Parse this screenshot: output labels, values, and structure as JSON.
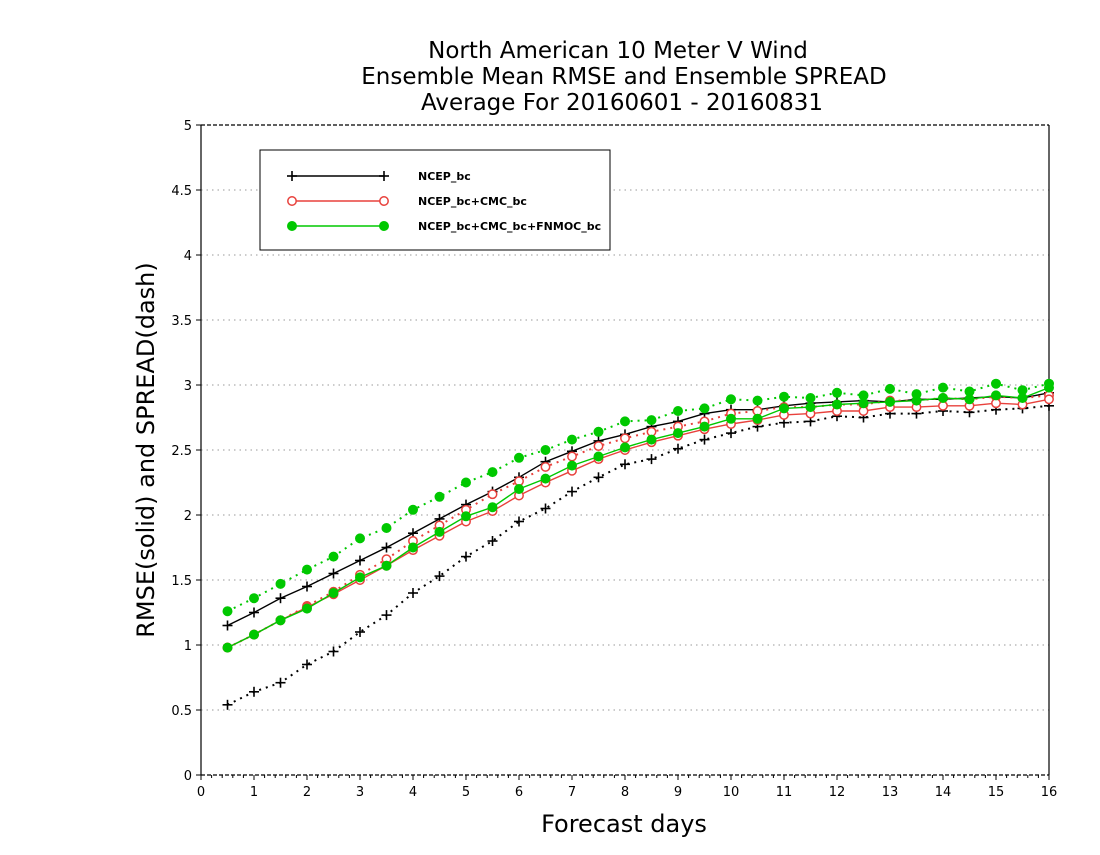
{
  "chart_data": {
    "type": "line",
    "title_lines": [
      "North American 10 Meter V Wind",
      "Ensemble Mean RMSE and Ensemble SPREAD",
      "Average For 20160601 - 20160831"
    ],
    "xlabel": "Forecast days",
    "ylabel": "RMSE(solid) and SPREAD(dash)",
    "xlim": [
      0,
      16
    ],
    "ylim": [
      0,
      5
    ],
    "x_ticks": [
      "0",
      "1",
      "2",
      "3",
      "4",
      "5",
      "6",
      "7",
      "8",
      "9",
      "10",
      "11",
      "12",
      "13",
      "14",
      "15",
      "16"
    ],
    "y_ticks": [
      "0",
      "0.5",
      "1",
      "1.5",
      "2",
      "2.5",
      "3",
      "3.5",
      "4",
      "4.5",
      "5"
    ],
    "grid": "horizontal dotted",
    "legend_position": "top-left",
    "x": [
      0.5,
      1,
      1.5,
      2,
      2.5,
      3,
      3.5,
      4,
      4.5,
      5,
      5.5,
      6,
      6.5,
      7,
      7.5,
      8,
      8.5,
      9,
      9.5,
      10,
      10.5,
      11,
      11.5,
      12,
      12.5,
      13,
      13.5,
      14,
      14.5,
      15,
      15.5,
      16
    ],
    "series": [
      {
        "name": "NCEP_bc",
        "color": "#000000",
        "marker": "plus",
        "rmse": [
          1.15,
          1.25,
          1.36,
          1.45,
          1.55,
          1.65,
          1.75,
          1.86,
          1.97,
          2.08,
          2.18,
          2.29,
          2.41,
          2.49,
          2.57,
          2.62,
          2.68,
          2.72,
          2.78,
          2.81,
          2.81,
          2.84,
          2.86,
          2.87,
          2.88,
          2.87,
          2.89,
          2.89,
          2.9,
          2.91,
          2.9,
          2.94
        ],
        "spread": [
          0.54,
          0.64,
          0.71,
          0.85,
          0.95,
          1.1,
          1.23,
          1.4,
          1.53,
          1.68,
          1.8,
          1.95,
          2.05,
          2.18,
          2.29,
          2.39,
          2.43,
          2.51,
          2.58,
          2.63,
          2.68,
          2.71,
          2.72,
          2.76,
          2.75,
          2.78,
          2.78,
          2.8,
          2.79,
          2.81,
          2.82,
          2.84
        ]
      },
      {
        "name": "NCEP_bc+CMC_bc",
        "color": "#e8413c",
        "marker": "open-circle",
        "rmse": [
          0.98,
          1.08,
          1.19,
          1.29,
          1.39,
          1.5,
          1.61,
          1.73,
          1.84,
          1.95,
          2.03,
          2.15,
          2.25,
          2.34,
          2.43,
          2.5,
          2.56,
          2.61,
          2.66,
          2.7,
          2.73,
          2.77,
          2.78,
          2.8,
          2.8,
          2.83,
          2.83,
          2.84,
          2.84,
          2.86,
          2.85,
          2.89
        ],
        "spread": [
          0.98,
          1.08,
          1.19,
          1.3,
          1.41,
          1.54,
          1.66,
          1.8,
          1.92,
          2.04,
          2.16,
          2.26,
          2.37,
          2.45,
          2.53,
          2.59,
          2.64,
          2.68,
          2.72,
          2.78,
          2.8,
          2.83,
          2.83,
          2.85,
          2.85,
          2.88,
          2.88,
          2.9,
          2.89,
          2.91,
          2.9,
          2.92
        ]
      },
      {
        "name": "NCEP_bc+CMC_bc+FNMOC_bc",
        "color": "#00c800",
        "marker": "filled-circle",
        "rmse": [
          0.98,
          1.08,
          1.19,
          1.28,
          1.4,
          1.52,
          1.61,
          1.75,
          1.87,
          1.99,
          2.06,
          2.2,
          2.28,
          2.38,
          2.45,
          2.52,
          2.58,
          2.63,
          2.68,
          2.74,
          2.74,
          2.82,
          2.83,
          2.85,
          2.86,
          2.87,
          2.88,
          2.9,
          2.89,
          2.92,
          2.9,
          2.98
        ],
        "spread": [
          1.26,
          1.36,
          1.47,
          1.58,
          1.68,
          1.82,
          1.9,
          2.04,
          2.14,
          2.25,
          2.33,
          2.44,
          2.5,
          2.58,
          2.64,
          2.72,
          2.73,
          2.8,
          2.82,
          2.89,
          2.88,
          2.91,
          2.9,
          2.94,
          2.92,
          2.97,
          2.93,
          2.98,
          2.95,
          3.01,
          2.96,
          3.01
        ]
      }
    ]
  }
}
